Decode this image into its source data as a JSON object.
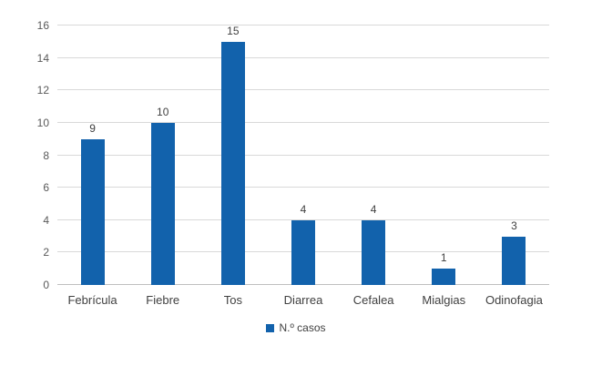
{
  "chart_data": {
    "type": "bar",
    "title": "",
    "xlabel": "",
    "ylabel": "",
    "categories": [
      "Febrícula",
      "Fiebre",
      "Tos",
      "Diarrea",
      "Cefalea",
      "Mialgias",
      "Odinofagia"
    ],
    "values": [
      9,
      10,
      15,
      4,
      4,
      1,
      3
    ],
    "series_name": "N.º casos",
    "ylim": [
      0,
      16
    ],
    "ytick_step": 2,
    "ytick_labels": [
      "0",
      "2",
      "4",
      "6",
      "8",
      "10",
      "12",
      "14",
      "16"
    ],
    "grid": true,
    "legend_position": "bottom",
    "data_labels_shown": true,
    "colors": {
      "bar": "#1262ac",
      "gridline": "#d9d9d9",
      "axis_line": "#bfbfbf",
      "axis_tick_text": "#595959",
      "data_label_text": "#404040",
      "category_text": "#404040",
      "background": "#ffffff"
    }
  },
  "legend": {
    "swatch_icon": "legend-color-swatch",
    "label": "N.º casos"
  }
}
